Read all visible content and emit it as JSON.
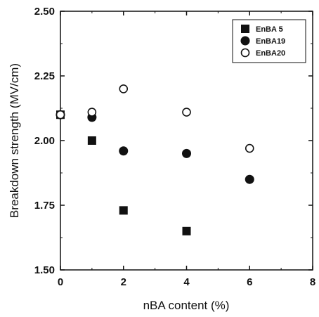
{
  "chart_data": {
    "type": "scatter",
    "title": "",
    "xlabel": "nBA content (%)",
    "ylabel": "Breakdown strength (MV/cm)",
    "xlim": [
      0,
      8
    ],
    "ylim": [
      1.5,
      2.5
    ],
    "x_ticks": [
      0,
      2,
      4,
      6,
      8
    ],
    "y_ticks": [
      1.5,
      1.75,
      2.0,
      2.25,
      2.5
    ],
    "x_tick_labels": [
      "0",
      "2",
      "4",
      "6",
      "8"
    ],
    "y_tick_labels": [
      "1.50",
      "1.75",
      "2.00",
      "2.25",
      "2.50"
    ],
    "grid": false,
    "legend_position": "top-right",
    "series": [
      {
        "name": "EnBA 5",
        "marker": "filled-square",
        "color": "#111111",
        "points": [
          {
            "x": 0,
            "y": 2.1
          },
          {
            "x": 1,
            "y": 2.0
          },
          {
            "x": 2,
            "y": 1.73
          },
          {
            "x": 4,
            "y": 1.65
          }
        ]
      },
      {
        "name": "EnBA19",
        "marker": "filled-circle",
        "color": "#111111",
        "points": [
          {
            "x": 0,
            "y": 2.1
          },
          {
            "x": 1,
            "y": 2.09
          },
          {
            "x": 2,
            "y": 1.96
          },
          {
            "x": 4,
            "y": 1.95
          },
          {
            "x": 6,
            "y": 1.85
          }
        ]
      },
      {
        "name": "EnBA20",
        "marker": "open-circle",
        "color": "#111111",
        "points": [
          {
            "x": 0,
            "y": 2.1
          },
          {
            "x": 1,
            "y": 2.11
          },
          {
            "x": 2,
            "y": 2.2
          },
          {
            "x": 4,
            "y": 2.11
          },
          {
            "x": 6,
            "y": 1.97
          }
        ]
      }
    ]
  }
}
